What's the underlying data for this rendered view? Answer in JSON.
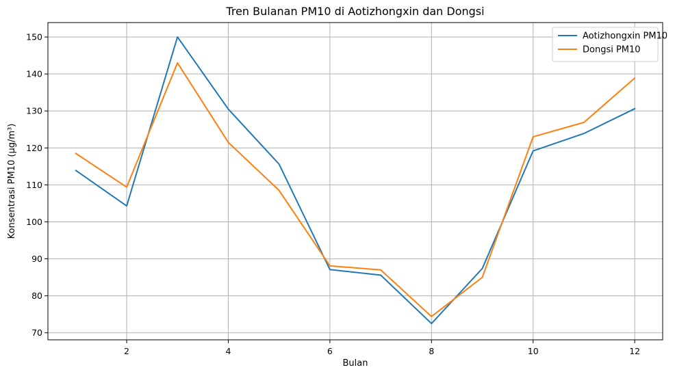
{
  "chart_data": {
    "type": "line",
    "title": "Tren Bulanan PM10 di Aotizhongxin dan Dongsi",
    "xlabel": "Bulan",
    "ylabel": "Konsentrasi PM10 (µg/m³)",
    "x": [
      1,
      2,
      3,
      4,
      5,
      6,
      7,
      8,
      9,
      10,
      11,
      12
    ],
    "xlim": [
      0.45,
      12.55
    ],
    "ylim": [
      68.1,
      153.9
    ],
    "xticks": [
      2,
      4,
      6,
      8,
      10,
      12
    ],
    "yticks": [
      70,
      80,
      90,
      100,
      110,
      120,
      130,
      140,
      150
    ],
    "grid": true,
    "legend_position": "top-right",
    "series": [
      {
        "name": "Aotizhongxin PM10",
        "color": "#1f77b4",
        "values": [
          113.9,
          104.3,
          150.0,
          130.5,
          115.6,
          87.1,
          85.6,
          72.5,
          87.4,
          119.2,
          123.9,
          130.6
        ]
      },
      {
        "name": "Dongsi PM10",
        "color": "#ff7f0e",
        "values": [
          118.5,
          109.4,
          143.0,
          121.5,
          108.5,
          88.1,
          87.0,
          74.4,
          85.0,
          123.0,
          126.9,
          138.9
        ]
      }
    ]
  }
}
